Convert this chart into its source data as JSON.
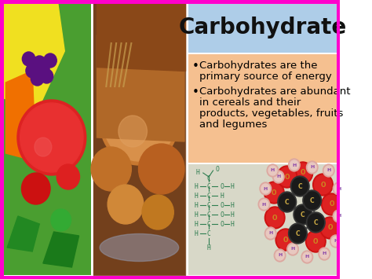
{
  "title": "Carbohydrate",
  "title_fontsize": 20,
  "title_color": "#111111",
  "title_bg_color": "#aecde8",
  "bullet1_line1": "Carbohydrates are the",
  "bullet1_line2": "primary source of energy",
  "bullet2_line1": "Carbohydrates are abundant",
  "bullet2_line2": "in cereals and their",
  "bullet2_line3": "products, vegetables, fruits",
  "bullet2_line4": "and legumes",
  "bullet_fontsize": 9.5,
  "bullet_bg_color_top": "#f5c090",
  "bullet_bg_color_bot": "#f0c080",
  "info_bg_color": "#d8d8c8",
  "border_color": "#ff00cc",
  "bg_color": "#ffffff",
  "formula_color": "#2e7d50",
  "formula_fontsize": 5.8,
  "carbon_color": "#1a1a1a",
  "oxygen_color": "#cc1111",
  "hydrogen_color": "#e8c8c0",
  "hydrogen_text_color": "#8844aa",
  "carbon_text_color": "#ccaa44",
  "oxygen_text_color": "#cc8822"
}
